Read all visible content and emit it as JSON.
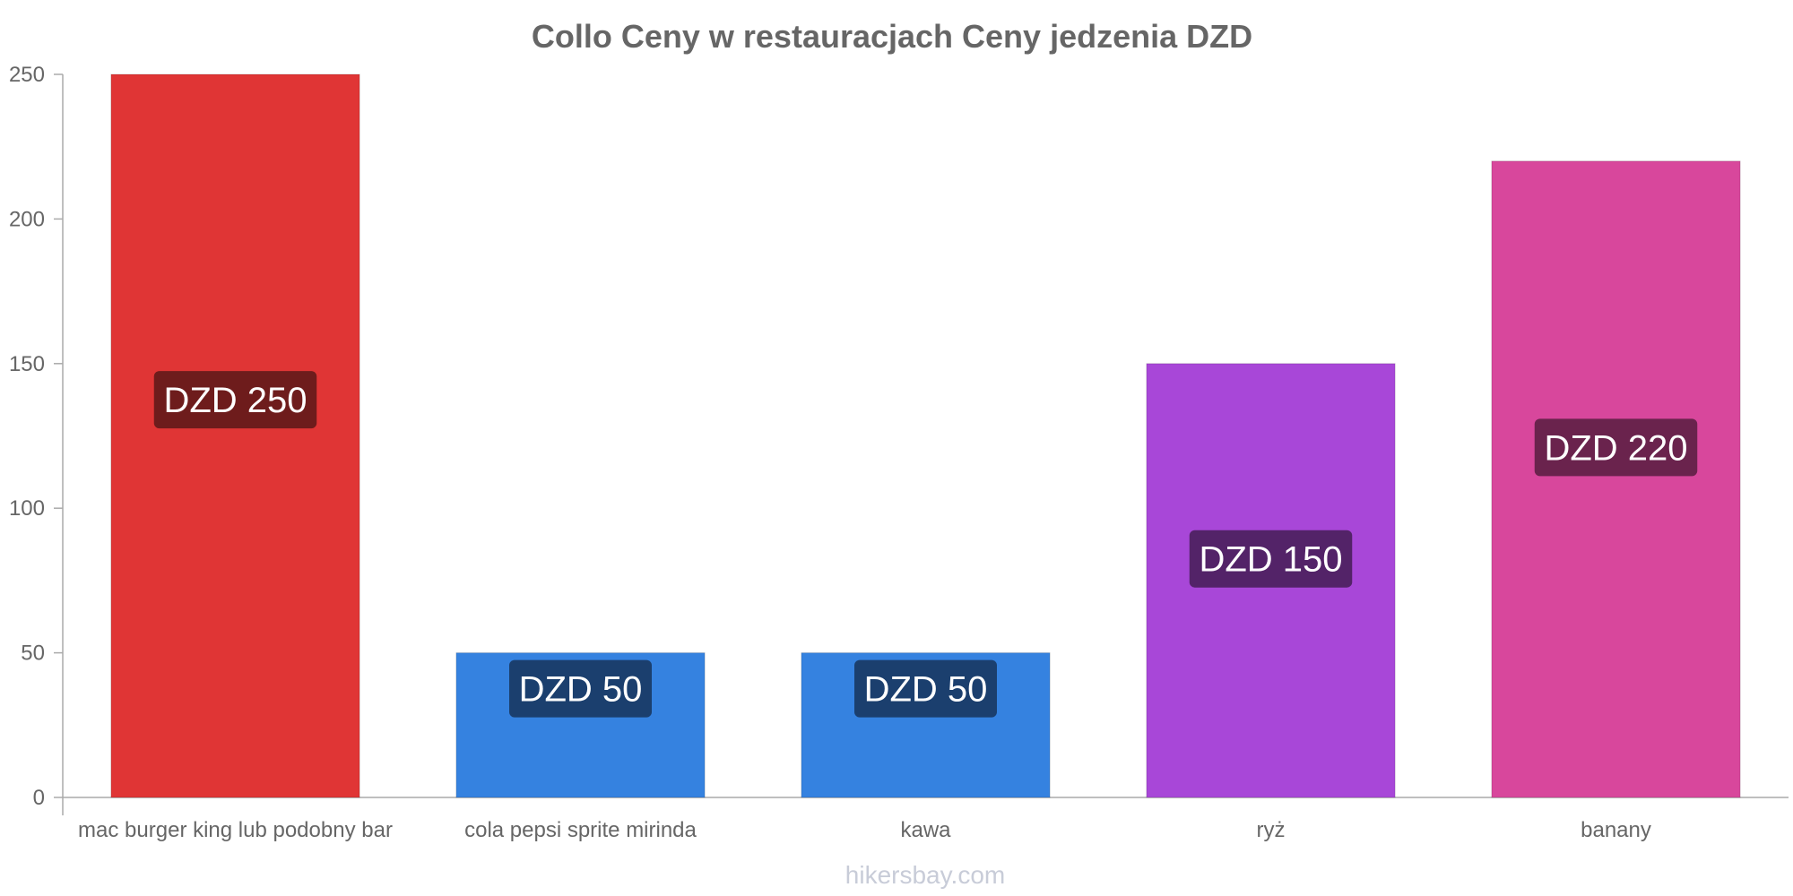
{
  "chart_data": {
    "type": "bar",
    "title": "Collo Ceny w restauracjach Ceny jedzenia DZD",
    "categories": [
      "mac burger king lub podobny bar",
      "cola pepsi sprite mirinda",
      "kawa",
      "ryż",
      "banany"
    ],
    "values": [
      250,
      50,
      50,
      150,
      220
    ],
    "data_labels": [
      "DZD 250",
      "DZD 50",
      "DZD 50",
      "DZD 150",
      "DZD 220"
    ],
    "bar_colors": [
      "#e03535",
      "#3582e0",
      "#3582e0",
      "#a847d8",
      "#d8479c"
    ],
    "label_bg_colors": [
      "#6e1c1c",
      "#1b3f6e",
      "#1b3f6e",
      "#532368",
      "#6a234d"
    ],
    "ylim": [
      0,
      250
    ],
    "yticks": [
      0,
      50,
      100,
      150,
      200,
      250
    ],
    "xlabel": "",
    "ylabel": "",
    "grid": false,
    "legend": "none"
  },
  "watermark": "hikersbay.com"
}
